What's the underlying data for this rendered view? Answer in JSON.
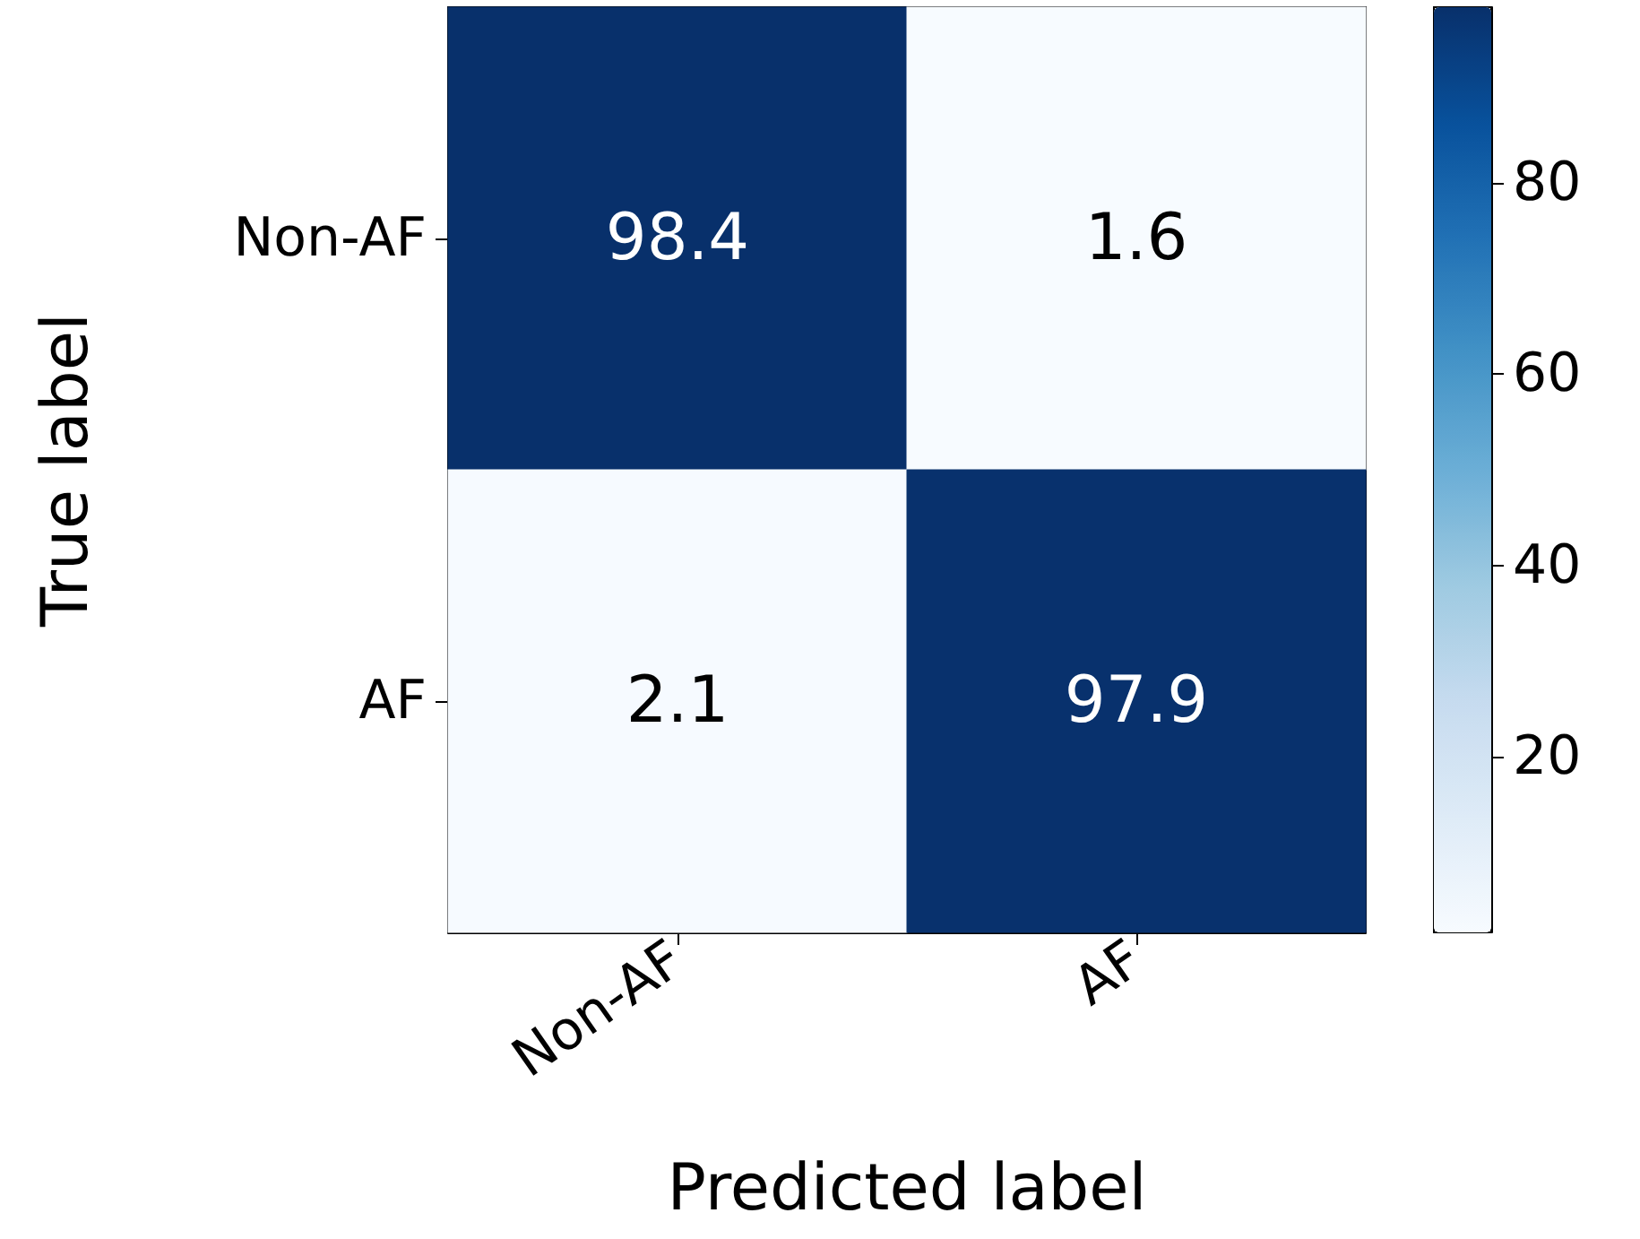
{
  "chart_data": {
    "type": "heatmap",
    "categories": [
      "Non-AF",
      "AF"
    ],
    "y_categories": [
      "Non-AF",
      "AF"
    ],
    "cells": [
      [
        98.4,
        1.6
      ],
      [
        2.1,
        97.9
      ]
    ],
    "data_labels": true,
    "xlabel": "Predicted label",
    "ylabel": "True label",
    "clim": [
      1.6,
      98.4
    ],
    "cticks": [
      20,
      40,
      60,
      80
    ]
  }
}
